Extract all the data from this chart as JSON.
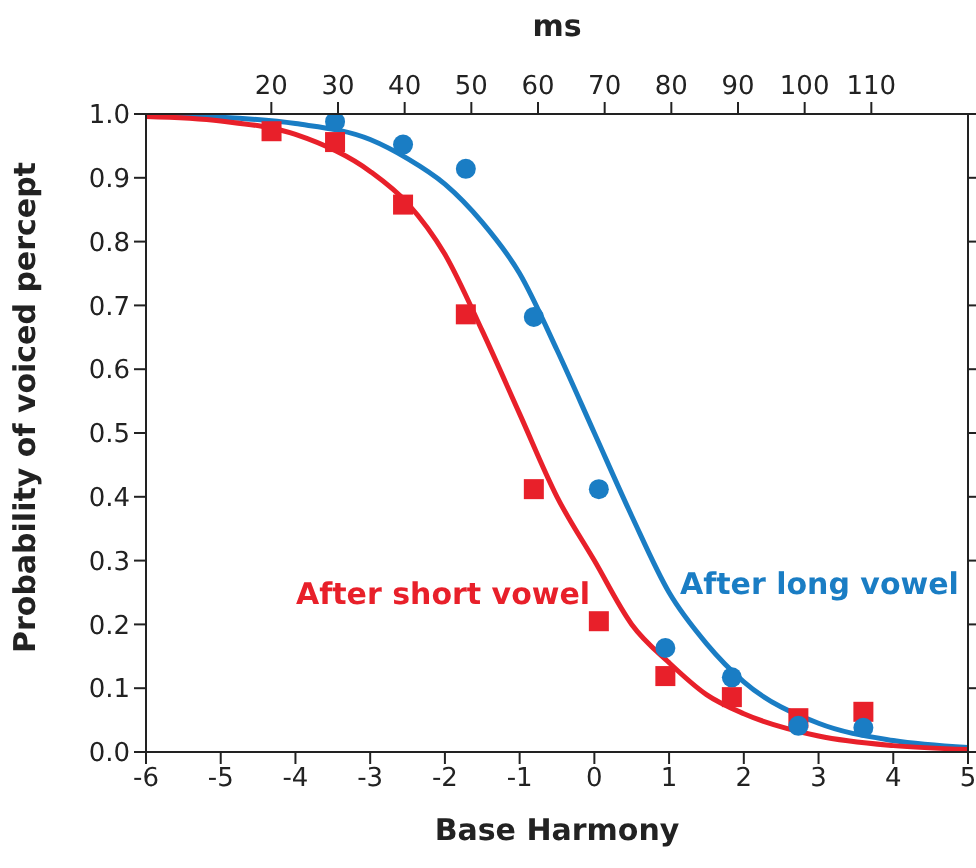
{
  "chart_data": {
    "type": "line",
    "xlabel": "Base Harmony",
    "ylabel": "Probability of voiced percept",
    "x2label": "ms",
    "xlim": [
      -6,
      5
    ],
    "xticks": [
      -6,
      -5,
      -4,
      -3,
      -2,
      -1,
      0,
      1,
      2,
      3,
      4,
      5
    ],
    "x2lim": [
      1.2,
      124.5
    ],
    "x2ticks": [
      20,
      30,
      40,
      50,
      60,
      70,
      80,
      90,
      100,
      110
    ],
    "ylim": [
      0,
      1
    ],
    "yticks": [
      {
        "value": 0,
        "label": "0.0"
      },
      0.1,
      0.2,
      0.3,
      0.4,
      0.5,
      0.6,
      0.7,
      0.8,
      0.9,
      {
        "value": 1,
        "label": "1.0"
      }
    ],
    "grid": false,
    "legend": false,
    "series": [
      {
        "name": "After long vowel",
        "color": "#1a7dc4",
        "marker": "none",
        "x": [
          -6,
          -5,
          -4,
          -3,
          -2.5,
          -2,
          -1.5,
          -1,
          -0.5,
          0,
          0.5,
          1,
          1.5,
          2,
          3,
          4,
          5
        ],
        "values": [
          0.998,
          0.995,
          0.985,
          0.96,
          0.93,
          0.89,
          0.83,
          0.75,
          0.63,
          0.5,
          0.37,
          0.25,
          0.17,
          0.11,
          0.045,
          0.018,
          0.007
        ]
      },
      {
        "name": "After short vowel",
        "color": "#e8202a",
        "marker": "none",
        "x": [
          -6,
          -5,
          -4,
          -3,
          -2.5,
          -2,
          -1.5,
          -1,
          -0.5,
          0,
          0.5,
          1,
          1.5,
          2,
          3,
          4,
          5
        ],
        "values": [
          0.996,
          0.989,
          0.968,
          0.91,
          0.86,
          0.78,
          0.66,
          0.53,
          0.4,
          0.3,
          0.2,
          0.14,
          0.09,
          0.06,
          0.025,
          0.01,
          0.004
        ]
      },
      {
        "type": "scatter",
        "color": "#e8202a",
        "marker": "square",
        "x": [
          -4.32,
          -3.47,
          -2.56,
          -1.72,
          -0.81,
          0.06,
          0.95,
          1.84,
          2.73,
          3.6
        ],
        "values": [
          0.973,
          0.956,
          0.858,
          0.686,
          0.412,
          0.205,
          0.119,
          0.086,
          0.053,
          0.063
        ]
      },
      {
        "type": "scatter",
        "color": "#1a7dc4",
        "marker": "circle",
        "x": [
          -3.47,
          -2.56,
          -1.72,
          -0.81,
          0.06,
          0.95,
          1.84,
          2.73,
          3.6
        ],
        "values": [
          0.988,
          0.952,
          0.914,
          0.682,
          0.412,
          0.163,
          0.117,
          0.041,
          0.038
        ]
      }
    ]
  }
}
